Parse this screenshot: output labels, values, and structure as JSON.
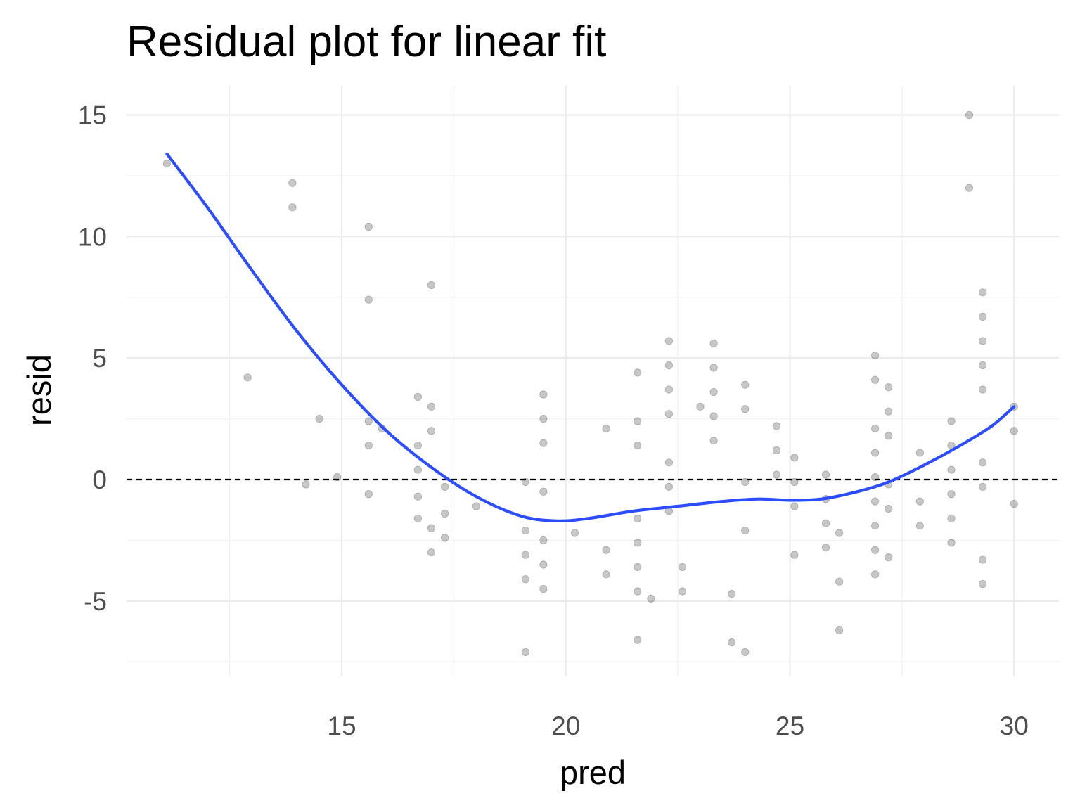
{
  "chart_data": {
    "type": "scatter",
    "title": "Residual plot for linear fit",
    "xlabel": "pred",
    "ylabel": "resid",
    "xlim": [
      10.2,
      31.0
    ],
    "ylim": [
      -8.1,
      16.2
    ],
    "xticks": [
      15,
      20,
      25,
      30
    ],
    "xticklabels": [
      "15",
      "20",
      "25",
      "30"
    ],
    "yticks": [
      -5,
      0,
      5,
      10,
      15
    ],
    "yticklabels": [
      "-5",
      "0",
      "5",
      "10",
      "15"
    ],
    "grid": true,
    "legend": "none",
    "reference_line": {
      "y": 0,
      "style": "dashed",
      "color": "#000000"
    },
    "point_color": "#000000",
    "smooth_color": "#2b4dff",
    "points": [
      {
        "x": 11.1,
        "y": 13.0
      },
      {
        "x": 12.9,
        "y": 4.2
      },
      {
        "x": 13.9,
        "y": 12.2
      },
      {
        "x": 13.9,
        "y": 11.2
      },
      {
        "x": 14.2,
        "y": -0.2
      },
      {
        "x": 14.5,
        "y": 2.5
      },
      {
        "x": 14.9,
        "y": 0.1
      },
      {
        "x": 15.6,
        "y": 10.4
      },
      {
        "x": 15.6,
        "y": 7.4
      },
      {
        "x": 15.6,
        "y": 2.4
      },
      {
        "x": 15.6,
        "y": 1.4
      },
      {
        "x": 15.6,
        "y": -0.6
      },
      {
        "x": 15.9,
        "y": 2.1
      },
      {
        "x": 16.7,
        "y": 3.4
      },
      {
        "x": 16.7,
        "y": 1.4
      },
      {
        "x": 16.7,
        "y": 0.4
      },
      {
        "x": 16.7,
        "y": -0.7
      },
      {
        "x": 16.7,
        "y": -1.6
      },
      {
        "x": 17.0,
        "y": 8.0
      },
      {
        "x": 17.0,
        "y": 3.0
      },
      {
        "x": 17.0,
        "y": 2.0
      },
      {
        "x": 17.0,
        "y": -2.0
      },
      {
        "x": 17.0,
        "y": -3.0
      },
      {
        "x": 17.3,
        "y": -0.3
      },
      {
        "x": 17.3,
        "y": -1.4
      },
      {
        "x": 17.3,
        "y": -2.4
      },
      {
        "x": 18.0,
        "y": -1.1
      },
      {
        "x": 19.1,
        "y": -0.1
      },
      {
        "x": 19.1,
        "y": -2.1
      },
      {
        "x": 19.1,
        "y": -3.1
      },
      {
        "x": 19.1,
        "y": -4.1
      },
      {
        "x": 19.1,
        "y": -7.1
      },
      {
        "x": 19.5,
        "y": 3.5
      },
      {
        "x": 19.5,
        "y": 2.5
      },
      {
        "x": 19.5,
        "y": 1.5
      },
      {
        "x": 19.5,
        "y": -0.5
      },
      {
        "x": 19.5,
        "y": -2.5
      },
      {
        "x": 19.5,
        "y": -3.5
      },
      {
        "x": 19.5,
        "y": -4.5
      },
      {
        "x": 20.2,
        "y": -2.2
      },
      {
        "x": 20.9,
        "y": 2.1
      },
      {
        "x": 20.9,
        "y": -2.9
      },
      {
        "x": 20.9,
        "y": -3.9
      },
      {
        "x": 21.6,
        "y": 4.4
      },
      {
        "x": 21.6,
        "y": 2.4
      },
      {
        "x": 21.6,
        "y": 1.4
      },
      {
        "x": 21.6,
        "y": -1.6
      },
      {
        "x": 21.6,
        "y": -2.6
      },
      {
        "x": 21.6,
        "y": -3.6
      },
      {
        "x": 21.6,
        "y": -4.6
      },
      {
        "x": 21.6,
        "y": -6.6
      },
      {
        "x": 21.9,
        "y": -4.9
      },
      {
        "x": 22.3,
        "y": 5.7
      },
      {
        "x": 22.3,
        "y": 4.7
      },
      {
        "x": 22.3,
        "y": 3.7
      },
      {
        "x": 22.3,
        "y": 2.7
      },
      {
        "x": 22.3,
        "y": 0.7
      },
      {
        "x": 22.3,
        "y": -0.3
      },
      {
        "x": 22.3,
        "y": -1.3
      },
      {
        "x": 22.6,
        "y": -3.6
      },
      {
        "x": 22.6,
        "y": -4.6
      },
      {
        "x": 23.0,
        "y": 3.0
      },
      {
        "x": 23.3,
        "y": 5.6
      },
      {
        "x": 23.3,
        "y": 4.6
      },
      {
        "x": 23.3,
        "y": 3.6
      },
      {
        "x": 23.3,
        "y": 2.6
      },
      {
        "x": 23.3,
        "y": 1.6
      },
      {
        "x": 23.7,
        "y": -4.7
      },
      {
        "x": 23.7,
        "y": -6.7
      },
      {
        "x": 24.0,
        "y": 3.9
      },
      {
        "x": 24.0,
        "y": 2.9
      },
      {
        "x": 24.0,
        "y": -0.1
      },
      {
        "x": 24.0,
        "y": -2.1
      },
      {
        "x": 24.0,
        "y": -7.1
      },
      {
        "x": 24.7,
        "y": 2.2
      },
      {
        "x": 24.7,
        "y": 1.2
      },
      {
        "x": 24.7,
        "y": 0.2
      },
      {
        "x": 25.1,
        "y": 0.9
      },
      {
        "x": 25.1,
        "y": -0.1
      },
      {
        "x": 25.1,
        "y": -1.1
      },
      {
        "x": 25.1,
        "y": -3.1
      },
      {
        "x": 25.8,
        "y": 0.2
      },
      {
        "x": 25.8,
        "y": -0.8
      },
      {
        "x": 25.8,
        "y": -1.8
      },
      {
        "x": 25.8,
        "y": -2.8
      },
      {
        "x": 26.1,
        "y": -2.2
      },
      {
        "x": 26.1,
        "y": -4.2
      },
      {
        "x": 26.1,
        "y": -6.2
      },
      {
        "x": 26.9,
        "y": 5.1
      },
      {
        "x": 26.9,
        "y": 4.1
      },
      {
        "x": 26.9,
        "y": 2.1
      },
      {
        "x": 26.9,
        "y": 1.1
      },
      {
        "x": 26.9,
        "y": 0.1
      },
      {
        "x": 26.9,
        "y": -0.9
      },
      {
        "x": 26.9,
        "y": -1.9
      },
      {
        "x": 26.9,
        "y": -2.9
      },
      {
        "x": 26.9,
        "y": -3.9
      },
      {
        "x": 27.2,
        "y": 3.8
      },
      {
        "x": 27.2,
        "y": 2.8
      },
      {
        "x": 27.2,
        "y": 1.8
      },
      {
        "x": 27.2,
        "y": -0.2
      },
      {
        "x": 27.2,
        "y": -1.2
      },
      {
        "x": 27.2,
        "y": -3.2
      },
      {
        "x": 27.9,
        "y": 1.1
      },
      {
        "x": 27.9,
        "y": -0.9
      },
      {
        "x": 27.9,
        "y": -1.9
      },
      {
        "x": 28.6,
        "y": 2.4
      },
      {
        "x": 28.6,
        "y": 1.4
      },
      {
        "x": 28.6,
        "y": 0.4
      },
      {
        "x": 28.6,
        "y": -0.6
      },
      {
        "x": 28.6,
        "y": -1.6
      },
      {
        "x": 28.6,
        "y": -2.6
      },
      {
        "x": 29.0,
        "y": 15.0
      },
      {
        "x": 29.0,
        "y": 12.0
      },
      {
        "x": 29.3,
        "y": 7.7
      },
      {
        "x": 29.3,
        "y": 6.7
      },
      {
        "x": 29.3,
        "y": 5.7
      },
      {
        "x": 29.3,
        "y": 4.7
      },
      {
        "x": 29.3,
        "y": 3.7
      },
      {
        "x": 29.3,
        "y": 0.7
      },
      {
        "x": 29.3,
        "y": -0.3
      },
      {
        "x": 29.3,
        "y": -3.3
      },
      {
        "x": 29.3,
        "y": -4.3
      },
      {
        "x": 30.0,
        "y": 3.0
      },
      {
        "x": 30.0,
        "y": 2.0
      },
      {
        "x": 30.0,
        "y": -1.0
      }
    ],
    "smooth_line": [
      {
        "x": 11.1,
        "y": 13.4
      },
      {
        "x": 12.0,
        "y": 11.2
      },
      {
        "x": 13.0,
        "y": 8.6
      },
      {
        "x": 14.0,
        "y": 6.1
      },
      {
        "x": 15.0,
        "y": 3.9
      },
      {
        "x": 16.0,
        "y": 2.0
      },
      {
        "x": 17.0,
        "y": 0.5
      },
      {
        "x": 18.0,
        "y": -0.7
      },
      {
        "x": 19.0,
        "y": -1.5
      },
      {
        "x": 19.8,
        "y": -1.7
      },
      {
        "x": 20.5,
        "y": -1.6
      },
      {
        "x": 21.5,
        "y": -1.3
      },
      {
        "x": 22.5,
        "y": -1.1
      },
      {
        "x": 23.5,
        "y": -0.9
      },
      {
        "x": 24.3,
        "y": -0.8
      },
      {
        "x": 25.0,
        "y": -0.85
      },
      {
        "x": 25.7,
        "y": -0.8
      },
      {
        "x": 26.5,
        "y": -0.5
      },
      {
        "x": 27.2,
        "y": -0.1
      },
      {
        "x": 28.0,
        "y": 0.6
      },
      {
        "x": 28.8,
        "y": 1.4
      },
      {
        "x": 29.5,
        "y": 2.2
      },
      {
        "x": 30.0,
        "y": 3.0
      }
    ]
  }
}
